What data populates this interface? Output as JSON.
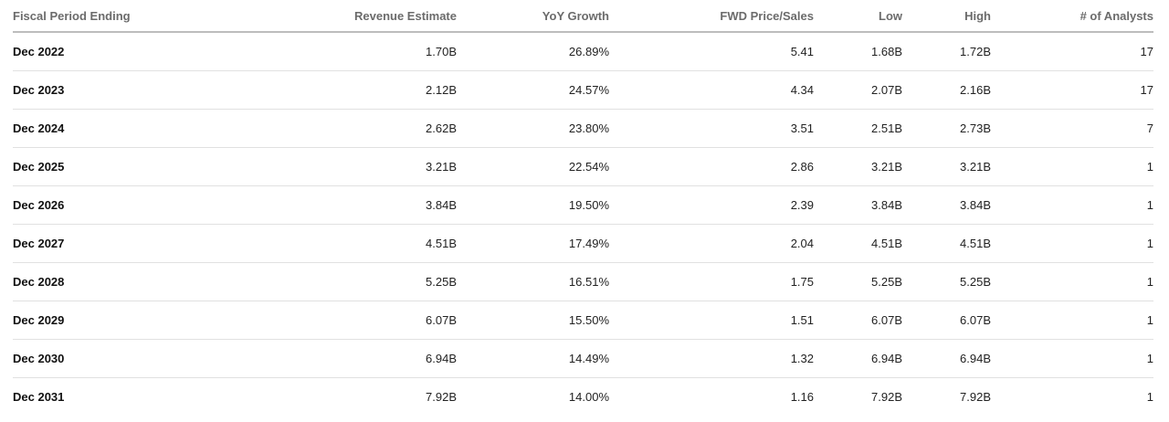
{
  "table": {
    "headers": {
      "period": "Fiscal Period Ending",
      "revenue_estimate": "Revenue Estimate",
      "yoy_growth": "YoY Growth",
      "fwd_price_sales": "FWD Price/Sales",
      "low": "Low",
      "high": "High",
      "analysts": "# of Analysts"
    },
    "rows": [
      {
        "period": "Dec 2022",
        "revenue_estimate": "1.70B",
        "yoy_growth": "26.89%",
        "fwd_price_sales": "5.41",
        "low": "1.68B",
        "high": "1.72B",
        "analysts": "17"
      },
      {
        "period": "Dec 2023",
        "revenue_estimate": "2.12B",
        "yoy_growth": "24.57%",
        "fwd_price_sales": "4.34",
        "low": "2.07B",
        "high": "2.16B",
        "analysts": "17"
      },
      {
        "period": "Dec 2024",
        "revenue_estimate": "2.62B",
        "yoy_growth": "23.80%",
        "fwd_price_sales": "3.51",
        "low": "2.51B",
        "high": "2.73B",
        "analysts": "7"
      },
      {
        "period": "Dec 2025",
        "revenue_estimate": "3.21B",
        "yoy_growth": "22.54%",
        "fwd_price_sales": "2.86",
        "low": "3.21B",
        "high": "3.21B",
        "analysts": "1"
      },
      {
        "period": "Dec 2026",
        "revenue_estimate": "3.84B",
        "yoy_growth": "19.50%",
        "fwd_price_sales": "2.39",
        "low": "3.84B",
        "high": "3.84B",
        "analysts": "1"
      },
      {
        "period": "Dec 2027",
        "revenue_estimate": "4.51B",
        "yoy_growth": "17.49%",
        "fwd_price_sales": "2.04",
        "low": "4.51B",
        "high": "4.51B",
        "analysts": "1"
      },
      {
        "period": "Dec 2028",
        "revenue_estimate": "5.25B",
        "yoy_growth": "16.51%",
        "fwd_price_sales": "1.75",
        "low": "5.25B",
        "high": "5.25B",
        "analysts": "1"
      },
      {
        "period": "Dec 2029",
        "revenue_estimate": "6.07B",
        "yoy_growth": "15.50%",
        "fwd_price_sales": "1.51",
        "low": "6.07B",
        "high": "6.07B",
        "analysts": "1"
      },
      {
        "period": "Dec 2030",
        "revenue_estimate": "6.94B",
        "yoy_growth": "14.49%",
        "fwd_price_sales": "1.32",
        "low": "6.94B",
        "high": "6.94B",
        "analysts": "1"
      },
      {
        "period": "Dec 2031",
        "revenue_estimate": "7.92B",
        "yoy_growth": "14.00%",
        "fwd_price_sales": "1.16",
        "low": "7.92B",
        "high": "7.92B",
        "analysts": "1"
      }
    ]
  }
}
